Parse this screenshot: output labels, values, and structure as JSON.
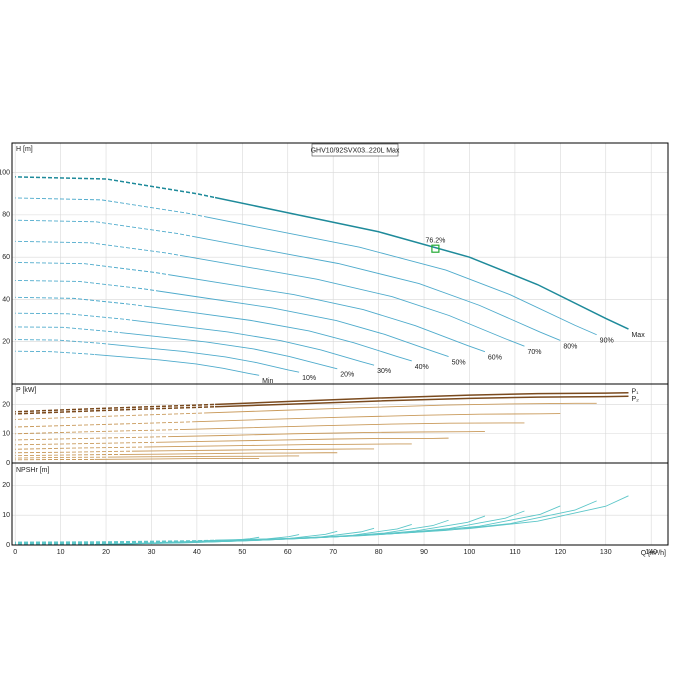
{
  "chart_data": {
    "type": "line",
    "title": "GHV10/92SVX03..220L Max",
    "x_label": "Q [m³/h]",
    "xlim": [
      -0.7,
      143.7
    ],
    "xticks": [
      0,
      10,
      20,
      30,
      40,
      50,
      60,
      70,
      80,
      90,
      100,
      110,
      120,
      130,
      140
    ],
    "grid": true,
    "colors": {
      "head": "#4fabcc",
      "head_max": "#1e8a9a",
      "power": "#c99a5b",
      "power_max": "#7a4a1e",
      "npsh": "#5cc6c8",
      "duty_point": "#22aa33"
    },
    "panels": {
      "head": {
        "y_label": "H [m]",
        "ylim": [
          0,
          114
        ],
        "yticks": [
          20,
          40,
          60,
          80,
          100
        ]
      },
      "power": {
        "y_label": "P [kW]",
        "ylim": [
          0,
          27
        ],
        "yticks": [
          0,
          10,
          20
        ]
      },
      "npsh": {
        "y_label": "NPSHr [m]",
        "ylim": [
          0,
          27.5
        ],
        "yticks": [
          0,
          10,
          20
        ]
      }
    },
    "power_labels": [
      "P₁",
      "P₂"
    ],
    "duty_point": {
      "x": 92.5,
      "y": 64,
      "label": "76.2%"
    },
    "curves": [
      {
        "name": "Max",
        "dashed_to": 44,
        "x": [
          0,
          20,
          40,
          60,
          80,
          100,
          115,
          130,
          135
        ],
        "head": [
          98,
          97,
          90,
          81,
          72,
          60,
          47,
          31,
          26
        ],
        "power": [
          17.5,
          18.7,
          19.8,
          21,
          22.2,
          23.2,
          23.7,
          23.9,
          24
        ],
        "power2": [
          16.8,
          18,
          19,
          20.1,
          21.2,
          22.1,
          22.5,
          22.7,
          22.8
        ],
        "npsh": [
          1,
          1.1,
          1.5,
          2.2,
          3.5,
          5.5,
          8,
          13,
          16.5
        ]
      },
      {
        "name": "90%",
        "dashed_to": 41.7,
        "x": [
          0,
          19,
          37.9,
          56.9,
          75.8,
          94.8,
          109,
          123.2,
          128
        ],
        "head": [
          88,
          87.1,
          80.8,
          72.7,
          64.7,
          53.9,
          42.2,
          27.8,
          23.3
        ],
        "power": [
          14.9,
          15.9,
          16.9,
          17.9,
          18.9,
          19.8,
          20.2,
          20.4,
          20.4
        ],
        "npsh": [
          0.9,
          1,
          1.3,
          2,
          3.1,
          4.9,
          7.2,
          11.7,
          14.8
        ]
      },
      {
        "name": "80%",
        "dashed_to": 39,
        "x": [
          0,
          17.8,
          35.6,
          53.3,
          71.1,
          88.9,
          102.2,
          115.6,
          120
        ],
        "head": [
          77.5,
          76.7,
          71.2,
          64.1,
          57,
          47.5,
          37.2,
          24.5,
          20.6
        ],
        "power": [
          12.3,
          13.1,
          13.9,
          14.8,
          15.6,
          16.3,
          16.7,
          16.8,
          16.9
        ],
        "npsh": [
          0.8,
          0.9,
          1.2,
          1.7,
          2.8,
          4.4,
          6.3,
          10.3,
          13.1
        ]
      },
      {
        "name": "70%",
        "dashed_to": 36.5,
        "x": [
          0,
          16.6,
          33.2,
          49.8,
          66.4,
          83,
          95.5,
          107.9,
          112.1
        ],
        "head": [
          67.5,
          66.8,
          62,
          55.8,
          49.6,
          41.3,
          32.4,
          21.4,
          17.9
        ],
        "power": [
          10,
          10.7,
          11.3,
          12,
          12.7,
          13.3,
          13.6,
          13.7,
          13.7
        ],
        "npsh": [
          0.7,
          0.8,
          1,
          1.5,
          2.4,
          3.8,
          5.5,
          9,
          11.4
        ]
      },
      {
        "name": "60%",
        "dashed_to": 33.7,
        "x": [
          0,
          15.3,
          30.6,
          46,
          61.3,
          76.6,
          88.1,
          99.6,
          103.4
        ],
        "head": [
          57.5,
          56.9,
          52.8,
          47.5,
          42.3,
          35.2,
          27.6,
          18.2,
          15.3
        ],
        "power": [
          7.9,
          8.4,
          8.9,
          9.4,
          10,
          10.4,
          10.6,
          10.7,
          10.8
        ],
        "npsh": [
          0.6,
          0.6,
          0.9,
          1.3,
          2.1,
          3.2,
          4.7,
          7.6,
          9.7
        ]
      },
      {
        "name": "50%",
        "dashed_to": 31,
        "x": [
          0,
          14.1,
          28.3,
          42.4,
          56.6,
          70.7,
          81.3,
          91.9,
          95.4
        ],
        "head": [
          49,
          48.5,
          45,
          40.5,
          36,
          30,
          23.5,
          15.5,
          13
        ],
        "power": [
          6.2,
          6.6,
          7,
          7.4,
          7.8,
          8.2,
          8.4,
          8.4,
          8.5
        ],
        "npsh": [
          0.5,
          0.6,
          0.8,
          1.1,
          1.8,
          2.8,
          4,
          6.5,
          8.3
        ]
      },
      {
        "name": "40%",
        "dashed_to": 28.5,
        "x": [
          0,
          12.9,
          25.9,
          38.8,
          51.8,
          64.7,
          74.4,
          84.1,
          87.3
        ],
        "head": [
          41,
          40.5,
          37.6,
          33.9,
          30.1,
          25.1,
          19.6,
          13,
          10.9
        ],
        "power": [
          4.7,
          5.1,
          5.4,
          5.7,
          6,
          6.3,
          6.4,
          6.5,
          6.5
        ],
        "npsh": [
          0.4,
          0.5,
          0.6,
          0.9,
          1.5,
          2.3,
          3.3,
          5.4,
          6.9
        ]
      },
      {
        "name": "30%",
        "dashed_to": 25.7,
        "x": [
          0,
          11.7,
          23.4,
          35.1,
          46.8,
          58.5,
          67.3,
          76.1,
          79
        ],
        "head": [
          33.5,
          33.2,
          30.8,
          27.7,
          24.6,
          20.5,
          16.1,
          10.6,
          8.9
        ],
        "power": [
          3.5,
          3.7,
          4,
          4.2,
          4.4,
          4.6,
          4.7,
          4.8,
          4.8
        ],
        "npsh": [
          0.3,
          0.4,
          0.5,
          0.8,
          1.2,
          1.9,
          2.7,
          4.4,
          5.6
        ]
      },
      {
        "name": "20%",
        "dashed_to": 23,
        "x": [
          0,
          10.5,
          21,
          31.5,
          42,
          52.5,
          60.4,
          68.3,
          70.9
        ],
        "head": [
          27,
          26.8,
          24.8,
          22.4,
          19.9,
          16.6,
          13,
          8.6,
          7.2
        ],
        "power": [
          2.5,
          2.7,
          2.9,
          3,
          3.2,
          3.4,
          3.4,
          3.5,
          3.5
        ],
        "npsh": [
          0.3,
          0.3,
          0.4,
          0.6,
          1,
          1.5,
          2.2,
          3.6,
          4.6
        ]
      },
      {
        "name": "10%",
        "dashed_to": 20.4,
        "x": [
          0,
          9.3,
          18.5,
          27.8,
          37,
          46.3,
          53.2,
          60.2,
          62.5
        ],
        "head": [
          21,
          20.8,
          19.3,
          17.3,
          15.4,
          12.8,
          10.1,
          6.6,
          5.6
        ],
        "power": [
          1.7,
          1.9,
          2,
          2.1,
          2.2,
          2.3,
          2.3,
          2.4,
          2.4
        ],
        "npsh": [
          0.2,
          0.2,
          0.3,
          0.5,
          0.7,
          1.2,
          1.7,
          2.8,
          3.5
        ]
      },
      {
        "name": "Min",
        "dashed_to": 17.5,
        "x": [
          0,
          8,
          15.9,
          23.9,
          31.8,
          39.8,
          45.8,
          51.7,
          53.7
        ],
        "head": [
          15.5,
          15.3,
          14.2,
          12.8,
          11.4,
          9.5,
          7.4,
          4.9,
          4.1
        ],
        "power": [
          1.1,
          1.2,
          1.2,
          1.3,
          1.4,
          1.5,
          1.5,
          1.5,
          1.5
        ],
        "npsh": [
          0.2,
          0.2,
          0.2,
          0.3,
          0.6,
          0.9,
          1.3,
          2.1,
          2.6
        ]
      }
    ]
  }
}
